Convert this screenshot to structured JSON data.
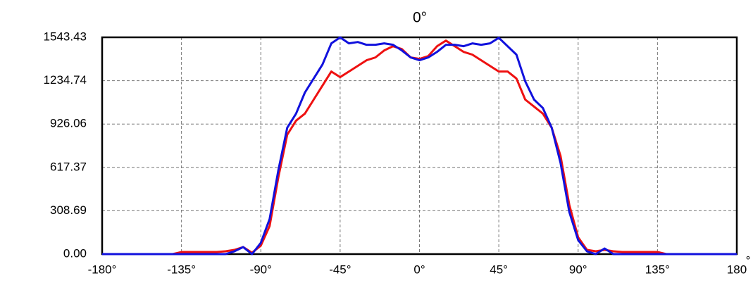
{
  "chart_data": {
    "type": "line",
    "title": "0°",
    "axis_unit_mark": "°",
    "x": [
      -180,
      -175,
      -170,
      -165,
      -160,
      -155,
      -150,
      -145,
      -140,
      -135,
      -130,
      -125,
      -120,
      -115,
      -110,
      -105,
      -100,
      -95,
      -90,
      -85,
      -80,
      -75,
      -70,
      -65,
      -60,
      -55,
      -50,
      -45,
      -40,
      -35,
      -30,
      -25,
      -20,
      -15,
      -10,
      -5,
      0,
      5,
      10,
      15,
      20,
      25,
      30,
      35,
      40,
      45,
      50,
      55,
      60,
      65,
      70,
      75,
      80,
      85,
      90,
      95,
      100,
      105,
      110,
      115,
      120,
      125,
      130,
      135,
      140,
      145,
      150,
      155,
      160,
      165,
      170,
      175,
      180
    ],
    "series": [
      {
        "name": "red",
        "color": "#ee1111",
        "values": [
          0,
          0,
          0,
          0,
          0,
          0,
          0,
          0,
          0,
          15,
          15,
          15,
          15,
          15,
          20,
          30,
          50,
          10,
          60,
          200,
          550,
          850,
          950,
          1000,
          1100,
          1200,
          1300,
          1260,
          1300,
          1340,
          1380,
          1400,
          1450,
          1480,
          1460,
          1400,
          1390,
          1410,
          1480,
          1520,
          1480,
          1440,
          1420,
          1380,
          1340,
          1300,
          1300,
          1250,
          1100,
          1050,
          1000,
          900,
          700,
          350,
          120,
          30,
          20,
          30,
          20,
          15,
          15,
          15,
          15,
          15,
          0,
          0,
          0,
          0,
          0,
          0,
          0,
          0,
          0
        ]
      },
      {
        "name": "blue",
        "color": "#1111dd",
        "values": [
          0,
          0,
          0,
          0,
          0,
          0,
          0,
          0,
          0,
          0,
          0,
          0,
          0,
          0,
          0,
          20,
          50,
          0,
          80,
          250,
          600,
          900,
          1000,
          1150,
          1250,
          1350,
          1500,
          1543,
          1500,
          1510,
          1490,
          1490,
          1500,
          1490,
          1450,
          1400,
          1380,
          1400,
          1440,
          1490,
          1490,
          1480,
          1500,
          1490,
          1500,
          1540,
          1480,
          1420,
          1230,
          1100,
          1040,
          900,
          650,
          300,
          100,
          20,
          0,
          40,
          0,
          0,
          0,
          0,
          0,
          0,
          0,
          0,
          0,
          0,
          0,
          0,
          0,
          0,
          0
        ]
      }
    ],
    "xlim": [
      -180,
      180
    ],
    "xticks": [
      {
        "value": -180,
        "label": "-180°"
      },
      {
        "value": -135,
        "label": "-135°"
      },
      {
        "value": -90,
        "label": "-90°"
      },
      {
        "value": -45,
        "label": "-45°"
      },
      {
        "value": 0,
        "label": "0°"
      },
      {
        "value": 45,
        "label": "45°"
      },
      {
        "value": 90,
        "label": "90°"
      },
      {
        "value": 135,
        "label": "135°"
      },
      180
    ],
    "ylim": [
      0,
      1543.43
    ],
    "yticks": [
      {
        "value": 0,
        "label": "0.00"
      },
      308.69,
      617.37,
      926.06,
      1234.74,
      1543.43
    ],
    "grid": true
  }
}
